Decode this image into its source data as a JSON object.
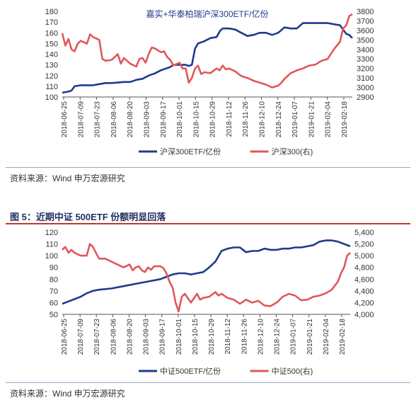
{
  "chart_data": [
    {
      "type": "line",
      "title": "嘉实+华泰柏瑞沪深300ETF/亿份",
      "x_ticks": [
        "2018-06-25",
        "2018-07-09",
        "2018-07-23",
        "2018-08-06",
        "2018-08-20",
        "2018-09-03",
        "2018-09-17",
        "2018-10-01",
        "2018-10-15",
        "2018-10-29",
        "2018-11-12",
        "2018-11-26",
        "2018-12-10",
        "2018-12-24",
        "2019-01-07",
        "2019-01-21",
        "2019-02-04",
        "2019-02-18"
      ],
      "y_left": {
        "ylim": [
          100,
          180
        ],
        "ticks": [
          100,
          110,
          120,
          130,
          140,
          150,
          160,
          170,
          180
        ]
      },
      "y_right": {
        "ylim": [
          2900,
          3800
        ],
        "ticks": [
          2900,
          3000,
          3100,
          3200,
          3300,
          3400,
          3500,
          3600,
          3700,
          3800
        ]
      },
      "legend_position": "bottom-center",
      "grid": false,
      "series": [
        {
          "name": "沪深300ETF/亿份",
          "axis": "left",
          "color": "#1f3b8c",
          "points": [
            [
              0,
              104
            ],
            [
              1,
              105
            ],
            [
              1.5,
              106
            ],
            [
              2,
              110
            ],
            [
              3,
              111
            ],
            [
              5,
              111
            ],
            [
              6,
              112
            ],
            [
              7,
              113
            ],
            [
              8,
              113
            ],
            [
              10,
              114
            ],
            [
              11,
              114
            ],
            [
              12,
              116
            ],
            [
              13,
              117
            ],
            [
              14,
              120
            ],
            [
              14.5,
              121
            ],
            [
              15,
              122
            ],
            [
              16,
              125
            ],
            [
              17,
              127
            ],
            [
              17.5,
              128
            ],
            [
              18,
              130
            ],
            [
              19,
              130
            ],
            [
              20,
              130
            ],
            [
              20.5,
              129
            ],
            [
              21,
              130
            ],
            [
              21.5,
              145
            ],
            [
              22,
              150
            ],
            [
              23,
              152
            ],
            [
              24,
              155
            ],
            [
              25,
              156
            ],
            [
              25.6,
              162
            ],
            [
              26,
              164
            ],
            [
              27,
              164
            ],
            [
              28,
              163
            ],
            [
              29,
              160
            ],
            [
              30,
              157
            ],
            [
              31,
              158
            ],
            [
              32,
              160
            ],
            [
              33,
              160
            ],
            [
              34,
              158
            ],
            [
              35,
              160
            ],
            [
              36,
              165
            ],
            [
              37,
              164
            ],
            [
              38,
              164
            ],
            [
              39,
              169
            ],
            [
              40,
              169
            ],
            [
              41,
              169
            ],
            [
              42,
              169
            ],
            [
              43,
              169
            ],
            [
              44,
              168
            ],
            [
              45,
              167
            ],
            [
              46,
              159
            ],
            [
              46.5,
              158
            ],
            [
              47,
              155
            ]
          ]
        },
        {
          "name": "沪深300(右)",
          "axis": "right",
          "color": "#e15759",
          "points": [
            [
              0,
              3570
            ],
            [
              0.5,
              3440
            ],
            [
              1,
              3510
            ],
            [
              1.5,
              3400
            ],
            [
              2,
              3380
            ],
            [
              2.5,
              3460
            ],
            [
              3,
              3490
            ],
            [
              4,
              3460
            ],
            [
              4.5,
              3560
            ],
            [
              5,
              3530
            ],
            [
              6,
              3500
            ],
            [
              6.5,
              3300
            ],
            [
              7,
              3280
            ],
            [
              8,
              3290
            ],
            [
              9,
              3350
            ],
            [
              9.5,
              3250
            ],
            [
              10,
              3310
            ],
            [
              11,
              3250
            ],
            [
              12,
              3220
            ],
            [
              12.5,
              3300
            ],
            [
              13,
              3310
            ],
            [
              13.5,
              3260
            ],
            [
              14,
              3350
            ],
            [
              14.5,
              3420
            ],
            [
              15,
              3410
            ],
            [
              16,
              3370
            ],
            [
              16.5,
              3380
            ],
            [
              17,
              3320
            ],
            [
              17.5,
              3290
            ],
            [
              18,
              3230
            ],
            [
              19,
              3260
            ],
            [
              19.5,
              3200
            ],
            [
              20,
              3200
            ],
            [
              20.5,
              3050
            ],
            [
              21,
              3100
            ],
            [
              21.5,
              3200
            ],
            [
              22,
              3230
            ],
            [
              22.5,
              3140
            ],
            [
              23,
              3160
            ],
            [
              24,
              3150
            ],
            [
              25,
              3200
            ],
            [
              25.5,
              3180
            ],
            [
              26,
              3230
            ],
            [
              26.5,
              3190
            ],
            [
              27,
              3200
            ],
            [
              28,
              3170
            ],
            [
              29,
              3120
            ],
            [
              30,
              3100
            ],
            [
              31,
              3070
            ],
            [
              32,
              3050
            ],
            [
              33,
              3030
            ],
            [
              34,
              3000
            ],
            [
              35,
              3020
            ],
            [
              35.5,
              3050
            ],
            [
              36,
              3090
            ],
            [
              37,
              3150
            ],
            [
              38,
              3180
            ],
            [
              39,
              3200
            ],
            [
              40,
              3230
            ],
            [
              41,
              3240
            ],
            [
              42,
              3280
            ],
            [
              43,
              3300
            ],
            [
              44,
              3400
            ],
            [
              45,
              3480
            ],
            [
              45.5,
              3620
            ],
            [
              46,
              3650
            ],
            [
              46.5,
              3750
            ],
            [
              47,
              3770
            ]
          ]
        }
      ]
    },
    {
      "type": "line",
      "title": "",
      "x_ticks": [
        "2018-06-25",
        "2018-07-09",
        "2018-07-23",
        "2018-08-06",
        "2018-08-20",
        "2018-09-03",
        "2018-09-17",
        "2018-10-01",
        "2018-10-15",
        "2018-10-29",
        "2018-11-12",
        "2018-11-26",
        "2018-12-10",
        "2018-12-24",
        "2019-01-07",
        "2019-01-21",
        "2019-02-04",
        "2019-02-18"
      ],
      "y_left": {
        "ylim": [
          50,
          120
        ],
        "ticks": [
          50,
          60,
          70,
          80,
          90,
          100,
          110,
          120
        ]
      },
      "y_right": {
        "ylim": [
          4000,
          5400
        ],
        "ticks": [
          "4,000",
          "4,200",
          "4,400",
          "4,600",
          "4,800",
          "5,000",
          "5,200",
          "5,400"
        ],
        "tick_values": [
          4000,
          4200,
          4400,
          4600,
          4800,
          5000,
          5200,
          5400
        ]
      },
      "legend_position": "bottom-center",
      "grid": false,
      "series": [
        {
          "name": "中证500ETF/亿份",
          "axis": "left",
          "color": "#1f3b8c",
          "points": [
            [
              0,
              59
            ],
            [
              1,
              61
            ],
            [
              2,
              63
            ],
            [
              3,
              65
            ],
            [
              4,
              68
            ],
            [
              5,
              70
            ],
            [
              6,
              71
            ],
            [
              8,
              72
            ],
            [
              10,
              74
            ],
            [
              12,
              76
            ],
            [
              14,
              78
            ],
            [
              16,
              80
            ],
            [
              17,
              82
            ],
            [
              18,
              84
            ],
            [
              19,
              85
            ],
            [
              20,
              85
            ],
            [
              21,
              84
            ],
            [
              22,
              85
            ],
            [
              23,
              86
            ],
            [
              24,
              90
            ],
            [
              25,
              95
            ],
            [
              26,
              104
            ],
            [
              27,
              106
            ],
            [
              28,
              107
            ],
            [
              29,
              107
            ],
            [
              30,
              103
            ],
            [
              31,
              104
            ],
            [
              32,
              104
            ],
            [
              33,
              106
            ],
            [
              34,
              105
            ],
            [
              35,
              105
            ],
            [
              36,
              106
            ],
            [
              37,
              106
            ],
            [
              38,
              107
            ],
            [
              39,
              107
            ],
            [
              40,
              108
            ],
            [
              41,
              109
            ],
            [
              42,
              112
            ],
            [
              43,
              113
            ],
            [
              44,
              113
            ],
            [
              45,
              112
            ],
            [
              46,
              110
            ],
            [
              47,
              108
            ]
          ]
        },
        {
          "name": "中证500(右)",
          "axis": "right",
          "color": "#e15759",
          "points": [
            [
              0,
              5100
            ],
            [
              0.5,
              5150
            ],
            [
              1,
              5050
            ],
            [
              1.5,
              5100
            ],
            [
              2,
              5050
            ],
            [
              3,
              5000
            ],
            [
              4,
              5000
            ],
            [
              4.5,
              5200
            ],
            [
              5,
              5150
            ],
            [
              5.5,
              5050
            ],
            [
              6,
              4950
            ],
            [
              7,
              4950
            ],
            [
              8,
              4900
            ],
            [
              9,
              4850
            ],
            [
              10,
              4800
            ],
            [
              11,
              4850
            ],
            [
              11.5,
              4750
            ],
            [
              12,
              4800
            ],
            [
              12.5,
              4820
            ],
            [
              13,
              4750
            ],
            [
              13.5,
              4720
            ],
            [
              14,
              4800
            ],
            [
              14.5,
              4760
            ],
            [
              15,
              4820
            ],
            [
              16,
              4820
            ],
            [
              16.5,
              4790
            ],
            [
              17,
              4700
            ],
            [
              17.5,
              4560
            ],
            [
              18,
              4460
            ],
            [
              18.5,
              4200
            ],
            [
              19,
              4050
            ],
            [
              19.5,
              4300
            ],
            [
              20,
              4350
            ],
            [
              21,
              4200
            ],
            [
              22,
              4350
            ],
            [
              22.5,
              4250
            ],
            [
              23,
              4280
            ],
            [
              24,
              4300
            ],
            [
              25,
              4380
            ],
            [
              25.5,
              4320
            ],
            [
              26,
              4350
            ],
            [
              27,
              4280
            ],
            [
              28,
              4250
            ],
            [
              29,
              4180
            ],
            [
              30,
              4250
            ],
            [
              31,
              4200
            ],
            [
              32,
              4230
            ],
            [
              33,
              4150
            ],
            [
              34,
              4140
            ],
            [
              35,
              4200
            ],
            [
              36,
              4300
            ],
            [
              37,
              4350
            ],
            [
              38,
              4320
            ],
            [
              39,
              4240
            ],
            [
              40,
              4250
            ],
            [
              41,
              4300
            ],
            [
              42,
              4320
            ],
            [
              43,
              4360
            ],
            [
              44,
              4420
            ],
            [
              45,
              4560
            ],
            [
              45.5,
              4700
            ],
            [
              46,
              4800
            ],
            [
              46.5,
              5000
            ],
            [
              47,
              5050
            ]
          ]
        }
      ]
    }
  ],
  "figure5_title": "图 5：近期中证 500ETF 份额明显回落",
  "source_1": "资料来源：Wind 申万宏源研究",
  "source_2": "资料来源：Wind 申万宏源研究"
}
